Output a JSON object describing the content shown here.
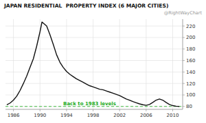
{
  "chart_data": {
    "type": "line",
    "title": "JAPAN RESIDENTIAL  PROPERTY INDEX (6 MAJOR CITIES)",
    "subtitle": "@RightWayChart",
    "x": [
      1985.0,
      1985.5,
      1986.0,
      1986.5,
      1987.0,
      1987.5,
      1988.0,
      1988.5,
      1989.0,
      1989.5,
      1990.0,
      1990.3,
      1991.0,
      1991.5,
      1992.0,
      1992.5,
      1993.0,
      1993.5,
      1994.0,
      1994.5,
      1995.0,
      1995.5,
      1996.0,
      1996.5,
      1997.0,
      1997.5,
      1998.0,
      1998.5,
      1999.0,
      1999.5,
      2000.0,
      2000.5,
      2001.0,
      2001.5,
      2002.0,
      2002.5,
      2003.0,
      2003.5,
      2004.0,
      2004.5,
      2005.0,
      2005.5,
      2006.0,
      2006.5,
      2007.0,
      2007.5,
      2008.0,
      2008.5,
      2009.0,
      2009.5,
      2010.0,
      2010.5,
      2011.0
    ],
    "values": [
      83.0,
      86.0,
      91.0,
      98.0,
      108.0,
      120.0,
      133.0,
      148.0,
      163.0,
      185.0,
      210.0,
      227.0,
      220.0,
      205.0,
      188.0,
      170.0,
      157.0,
      148.0,
      141.0,
      136.0,
      132.0,
      128.0,
      125.0,
      122.0,
      119.0,
      116.0,
      114.0,
      112.0,
      110.0,
      109.0,
      107.0,
      105.0,
      103.0,
      101.0,
      99.0,
      96.0,
      93.0,
      91.0,
      88.5,
      86.5,
      84.5,
      83.0,
      82.0,
      83.5,
      87.0,
      91.0,
      93.0,
      91.0,
      87.0,
      83.5,
      81.5,
      80.5,
      80.0
    ],
    "color": "#111111",
    "xlim": [
      1984.8,
      2011.5
    ],
    "ylim": [
      75,
      232
    ],
    "xticks": [
      1986,
      1990,
      1994,
      1998,
      2002,
      2006,
      2010
    ],
    "yticks": [
      80,
      100,
      120,
      140,
      160,
      180,
      200,
      220
    ],
    "grid": true,
    "reference_lines": [
      {
        "value": 80,
        "color": "#44bb44",
        "line_style": "dashed"
      }
    ],
    "annotations": [
      {
        "text": "Back to 1983 levels",
        "x": 1993.5,
        "y": 82.5,
        "color": "#22aa22"
      }
    ]
  }
}
